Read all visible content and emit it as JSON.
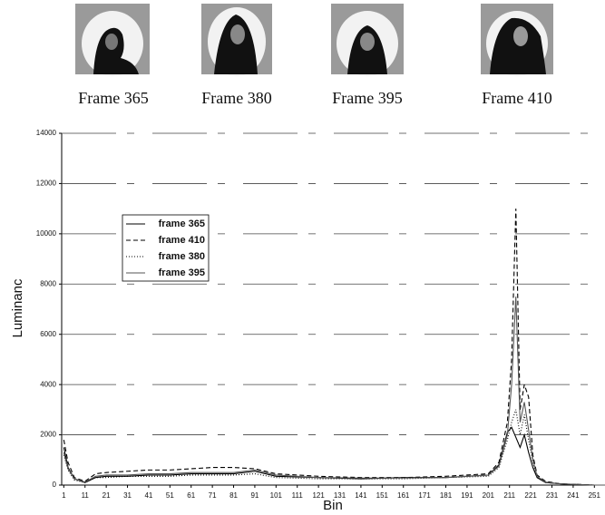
{
  "frames": {
    "captions": [
      "Frame 365",
      "Frame 380",
      "Frame 395",
      "Frame 410"
    ]
  },
  "chart_data": {
    "type": "line",
    "xlabel": "Bin",
    "ylabel": "Luminanc",
    "x": [
      1,
      3,
      6,
      11,
      16,
      21,
      31,
      41,
      51,
      61,
      71,
      81,
      91,
      101,
      121,
      141,
      161,
      181,
      201,
      206,
      210,
      212,
      214,
      216,
      218,
      220,
      222,
      224,
      228,
      235,
      251,
      256
    ],
    "series": [
      {
        "name": "frame 365",
        "color": "#000000",
        "dash": "none",
        "values": [
          1500,
          700,
          250,
          100,
          300,
          350,
          350,
          400,
          400,
          450,
          450,
          450,
          550,
          350,
          300,
          250,
          300,
          300,
          400,
          800,
          2100,
          2300,
          1900,
          1500,
          2000,
          1300,
          700,
          300,
          100,
          50,
          0,
          0
        ]
      },
      {
        "name": "frame 410",
        "color": "#000000",
        "dash": "5 3",
        "values": [
          1800,
          900,
          300,
          150,
          450,
          500,
          550,
          600,
          600,
          650,
          700,
          700,
          650,
          450,
          350,
          300,
          300,
          350,
          450,
          900,
          2500,
          5000,
          11000,
          3000,
          4000,
          3500,
          1200,
          400,
          150,
          50,
          0,
          0
        ]
      },
      {
        "name": "frame 380",
        "color": "#000000",
        "dash": "1 2",
        "values": [
          1200,
          600,
          200,
          100,
          300,
          300,
          350,
          350,
          350,
          400,
          400,
          400,
          450,
          300,
          250,
          250,
          250,
          300,
          350,
          700,
          1800,
          2500,
          3000,
          2000,
          2800,
          1800,
          900,
          300,
          100,
          50,
          0,
          0
        ]
      },
      {
        "name": "frame 395",
        "color": "#555555",
        "dash": "none",
        "values": [
          1300,
          650,
          250,
          120,
          350,
          400,
          400,
          450,
          450,
          500,
          500,
          500,
          600,
          400,
          300,
          280,
          280,
          300,
          400,
          750,
          2000,
          4000,
          7500,
          2500,
          3300,
          2200,
          1000,
          350,
          120,
          50,
          0,
          0
        ]
      }
    ],
    "xlim": [
      0,
      256
    ],
    "xticks": [
      1,
      11,
      21,
      31,
      41,
      51,
      61,
      71,
      81,
      91,
      101,
      111,
      121,
      131,
      141,
      151,
      161,
      171,
      181,
      191,
      201,
      211,
      221,
      231,
      241,
      251
    ],
    "ylim": [
      0,
      14000
    ],
    "yticks": [
      0,
      2000,
      4000,
      6000,
      8000,
      10000,
      12000,
      14000
    ],
    "grid": true
  }
}
